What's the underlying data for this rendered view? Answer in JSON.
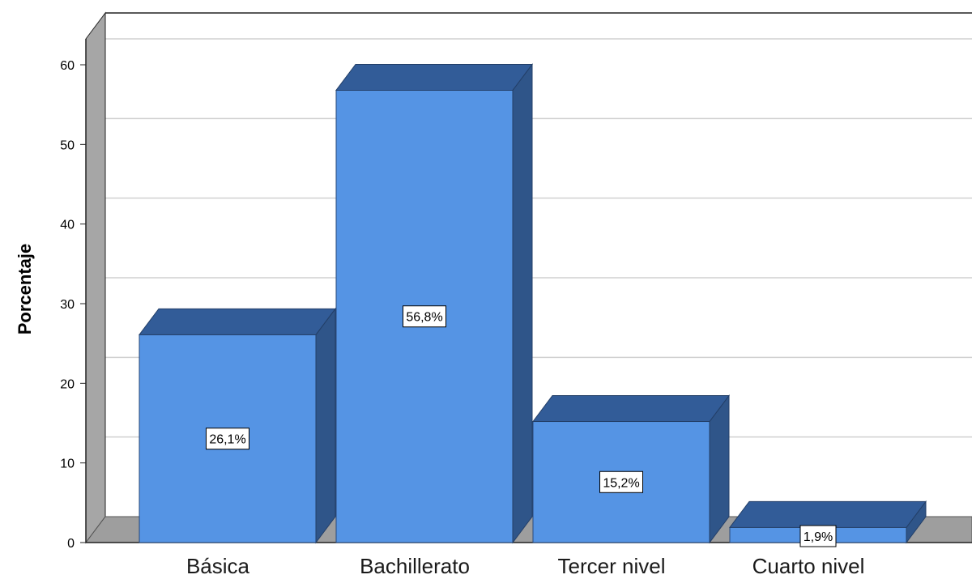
{
  "chart_data": {
    "type": "bar",
    "title": "",
    "xlabel": "",
    "ylabel": "Porcentaje",
    "ylim": [
      0,
      60
    ],
    "yticks": [
      "0",
      "10",
      "20",
      "30",
      "40",
      "50",
      "60"
    ],
    "categories": [
      "Básica",
      "Bachillerato",
      "Tercer nivel",
      "Cuarto nivel"
    ],
    "values": [
      26.1,
      56.8,
      15.2,
      1.9
    ],
    "data_labels": [
      "26,1%",
      "56,8%",
      "15,2%",
      "1,9%"
    ],
    "grid": true,
    "colors": {
      "bar_front": "#5594e4",
      "bar_top": "#325c98",
      "bar_side": "#2f5589",
      "wall": "#a6a6a6",
      "floor": "#9e9e9e",
      "grid": "#d0d0d0"
    }
  }
}
